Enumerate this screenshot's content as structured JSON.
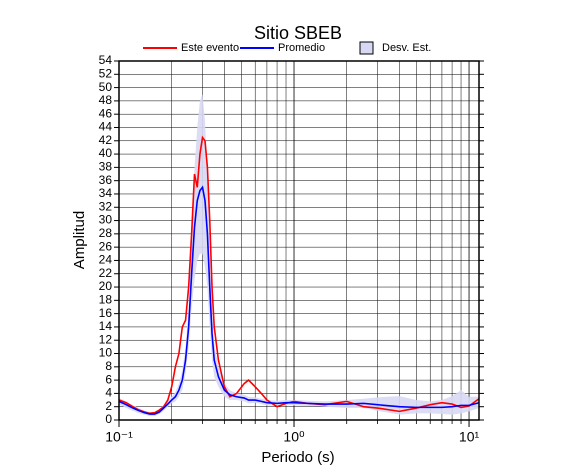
{
  "chart_data": {
    "type": "line",
    "title": "Sitio SBEB",
    "x_label": "Periodo (s)",
    "y_label": "Amplitud",
    "x_scale": "log",
    "grid": true,
    "xlim": [
      0.1,
      11.4
    ],
    "ylim": [
      0,
      54
    ],
    "xticks": [
      {
        "value": 0.1,
        "label": "10⁻¹"
      },
      {
        "value": 1,
        "label": "10⁰"
      },
      {
        "value": 10,
        "label": "10¹"
      }
    ],
    "yticks": [
      0,
      2,
      4,
      6,
      8,
      10,
      12,
      14,
      16,
      18,
      20,
      22,
      24,
      26,
      28,
      30,
      32,
      34,
      36,
      38,
      40,
      42,
      44,
      46,
      48,
      50,
      52,
      54
    ],
    "x": [
      0.1,
      0.11,
      0.12,
      0.13,
      0.14,
      0.15,
      0.16,
      0.17,
      0.18,
      0.19,
      0.2,
      0.21,
      0.22,
      0.23,
      0.24,
      0.25,
      0.26,
      0.27,
      0.28,
      0.29,
      0.3,
      0.31,
      0.32,
      0.33,
      0.34,
      0.35,
      0.37,
      0.4,
      0.43,
      0.47,
      0.52,
      0.55,
      0.6,
      0.65,
      0.7,
      0.8,
      0.9,
      1.0,
      1.2,
      1.5,
      2.0,
      2.5,
      3,
      4,
      5,
      6,
      7,
      8,
      9,
      10,
      11.4
    ],
    "series": [
      {
        "name": "Este evento",
        "color": "#ff0000",
        "values": [
          3,
          2.6,
          2.0,
          1.5,
          1.2,
          1.0,
          1.1,
          1.5,
          2.0,
          3,
          5,
          8,
          10,
          14,
          15,
          20,
          28,
          37,
          35,
          40,
          42.5,
          42,
          38,
          30,
          20,
          14,
          9,
          5,
          3.5,
          4,
          5.5,
          6,
          5,
          4,
          3,
          2,
          2.5,
          2.8,
          2.5,
          2.3,
          2.8,
          2.0,
          1.8,
          1.3,
          1.8,
          2.3,
          2.6,
          2.4,
          1.9,
          2.1,
          3.2
        ]
      },
      {
        "name": "Promedio",
        "color": "#0000ff",
        "values": [
          2.8,
          2.3,
          1.8,
          1.4,
          1.1,
          0.9,
          0.9,
          1.2,
          1.8,
          2.4,
          3,
          3.5,
          4.5,
          6,
          9,
          14,
          22,
          29,
          33,
          34.5,
          35,
          33,
          28,
          20,
          13,
          9,
          6.5,
          4.5,
          3.8,
          3.5,
          3.3,
          3,
          3,
          2.8,
          2.6,
          2.5,
          2.6,
          2.6,
          2.5,
          2.4,
          2.4,
          2.5,
          2.3,
          2.0,
          1.9,
          1.9,
          1.9,
          2.0,
          2.2,
          2.2,
          2.6
        ]
      },
      {
        "name": "Desv. Est.",
        "color": "#d8d8f4",
        "type": "band",
        "upper": [
          3.3,
          2.8,
          2.2,
          1.8,
          1.4,
          1.2,
          1.2,
          1.5,
          2.2,
          2.8,
          3.5,
          4.2,
          5.5,
          7.5,
          11,
          17,
          27,
          38,
          44,
          48,
          49,
          45,
          37,
          26,
          17,
          11.5,
          8,
          5.5,
          4.5,
          4,
          3.8,
          3.5,
          3.4,
          3.2,
          3,
          2.9,
          3,
          3,
          2.9,
          2.8,
          3,
          3.2,
          3.4,
          3.6,
          3,
          2.8,
          3,
          3.6,
          4.5,
          3.5,
          3.5
        ],
        "lower": [
          2.3,
          1.8,
          1.4,
          1.0,
          0.8,
          0.6,
          0.6,
          0.9,
          1.4,
          2,
          2.5,
          2.8,
          3.5,
          4.5,
          7,
          11,
          17,
          21,
          24,
          25,
          25,
          23,
          20,
          14,
          9,
          6.5,
          5,
          3.5,
          3,
          3,
          2.8,
          2.5,
          2.6,
          2.4,
          2.2,
          2.1,
          2.2,
          2.2,
          2.1,
          2,
          1.8,
          1.8,
          1.4,
          0.8,
          1.0,
          1.0,
          0.9,
          0.8,
          1.0,
          1.3,
          1.8
        ]
      }
    ]
  }
}
